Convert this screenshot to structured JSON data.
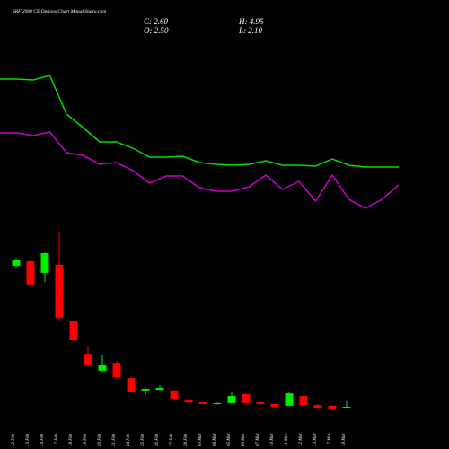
{
  "chart_data": [
    {
      "type": "line",
      "series": [
        {
          "color": "#00dd00",
          "values": [
            212,
            212,
            211,
            216,
            173,
            158,
            142,
            142,
            135,
            125,
            125,
            126,
            119,
            117,
            116,
            117,
            121,
            116,
            116,
            115,
            123,
            116,
            114,
            114,
            114
          ]
        },
        {
          "color": "#cc00cc",
          "values": [
            152,
            152,
            149,
            153,
            130,
            127,
            117,
            119,
            110,
            96,
            104,
            104,
            91,
            87,
            87,
            92,
            105,
            89,
            98,
            76,
            105,
            78,
            68,
            78,
            94
          ]
        }
      ],
      "ylim": [
        0,
        240
      ]
    },
    {
      "type": "candlestick",
      "title": "SRF 2900 CE Options Chart MunafaSutra.com",
      "header": {
        "close": "C: 2.60",
        "high": "H: 4.95",
        "open": "O: 2.50",
        "low": "L: 2.10"
      },
      "categories": [
        "12 Feb",
        "13 Feb",
        "14 Feb",
        "17 Feb",
        "18 Feb",
        "19 Feb",
        "20 Feb",
        "21 Feb",
        "24 Feb",
        "25 Feb",
        "26 Feb",
        "27 Feb",
        "28 Feb",
        "03 Mar",
        "04 Mar",
        "05 Mar",
        "06 Mar",
        "07 Mar",
        "10 Mar",
        "11 Mar",
        "12 Mar",
        "13 Mar",
        "17 Mar",
        "18 Mar"
      ],
      "open": [
        60.7,
        62.6,
        57.8,
        61.1,
        37.8,
        24.4,
        17.4,
        20.7,
        14.4,
        9.3,
        9.6,
        9.3,
        5.6,
        4.4,
        3.7,
        4.1,
        7.8,
        4.4,
        3.7,
        3.0,
        7.0,
        3.3,
        3.0,
        2.5
      ],
      "high": [
        64,
        63.5,
        66.3,
        74.8,
        38.1,
        27.8,
        24.1,
        21.5,
        14.8,
        10.7,
        11.5,
        9.6,
        5.9,
        4.6,
        4.3,
        8.9,
        8.1,
        4.8,
        3.9,
        8.5,
        7.4,
        3.7,
        3.3,
        4.95
      ],
      "low": [
        60,
        52.5,
        54,
        38.1,
        29.6,
        19.3,
        17.0,
        14.1,
        8.5,
        7.4,
        9.3,
        5.6,
        4.1,
        3.5,
        3.5,
        3.9,
        3.9,
        3.5,
        2.4,
        2.8,
        3.0,
        2.0,
        1.7,
        2.1
      ],
      "close": [
        63.3,
        53.0,
        65.9,
        39.3,
        30.0,
        19.6,
        20.0,
        14.8,
        8.9,
        10.0,
        10.4,
        5.9,
        4.4,
        3.7,
        4.1,
        7.0,
        4.1,
        3.7,
        2.6,
        8.1,
        3.3,
        2.2,
        1.9,
        2.6
      ],
      "up_color": "#00ee00",
      "down_color": "#ff0000",
      "ylim": [
        0,
        74.8
      ]
    }
  ]
}
